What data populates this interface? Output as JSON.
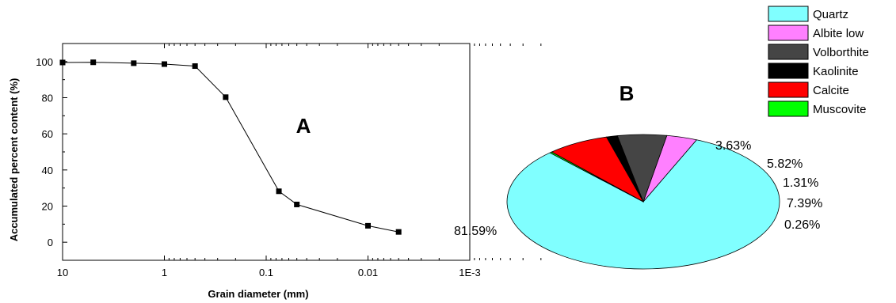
{
  "chart_data": [
    {
      "type": "line",
      "panel_label": "A",
      "xlabel": "Grain diameter (mm)",
      "ylabel": "Accumulated percent content  (%)",
      "x_scale": "log",
      "x_reversed": true,
      "xlim": [
        10,
        0.001
      ],
      "ylim": [
        -10,
        110
      ],
      "x_tick_labels": [
        "10",
        "1",
        "0.1",
        "0.01",
        "1E-3"
      ],
      "x_tick_values": [
        10,
        1,
        0.1,
        0.01,
        0.001
      ],
      "y_tick_values": [
        0,
        20,
        40,
        60,
        80,
        100
      ],
      "y_tick_labels": [
        "0",
        "20",
        "40",
        "60",
        "80",
        "100"
      ],
      "grid": false,
      "series": [
        {
          "marker": "square",
          "color": "#000000",
          "x": [
            10,
            5,
            2,
            1,
            0.5,
            0.25,
            0.075,
            0.05,
            0.01,
            0.005
          ],
          "y": [
            99.5,
            99.6,
            99.1,
            98.6,
            97.5,
            80.3,
            28.2,
            20.9,
            9.1,
            5.7
          ]
        }
      ]
    },
    {
      "type": "pie",
      "panel_label": "B",
      "legend_position": "top-right",
      "slices": [
        {
          "name": "Quartz",
          "value": 81.59,
          "label": "81.59%",
          "color": "#80FFFF"
        },
        {
          "name": "Albite low",
          "value": 3.63,
          "label": "3.63%",
          "color": "#FF80FF"
        },
        {
          "name": "Volborthite",
          "value": 5.82,
          "label": "5.82%",
          "color": "#454545"
        },
        {
          "name": "Kaolinite",
          "value": 1.31,
          "label": "1.31%",
          "color": "#000000"
        },
        {
          "name": "Calcite",
          "value": 7.39,
          "label": "7.39%",
          "color": "#FF0000"
        },
        {
          "name": "Muscovite",
          "value": 0.26,
          "label": "0.26%",
          "color": "#00FF00"
        }
      ]
    }
  ]
}
